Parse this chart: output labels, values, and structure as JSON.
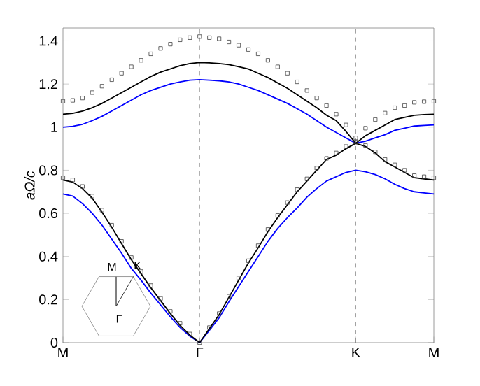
{
  "chart_data": {
    "type": "line",
    "ylabel": "aΩ/c",
    "categories": [
      "M",
      null,
      null,
      null,
      null,
      null,
      null,
      null,
      null,
      null,
      null,
      null,
      null,
      null,
      "Γ",
      null,
      null,
      null,
      null,
      null,
      null,
      null,
      null,
      null,
      null,
      null,
      null,
      null,
      null,
      null,
      "K",
      null,
      null,
      null,
      null,
      null,
      null,
      null,
      "M"
    ],
    "ylim": [
      0,
      1.46
    ],
    "yticks": [
      0,
      0.2,
      0.4,
      0.6,
      0.8,
      1,
      1.2,
      1.4
    ],
    "grid": false,
    "ref_lines": [
      {
        "axis": "x",
        "value": "Γ",
        "color": "#808080",
        "line_style": "dashed"
      },
      {
        "axis": "x",
        "value": "K",
        "color": "#808080",
        "line_style": "dashed"
      }
    ],
    "annotations": [
      "M",
      "K",
      {
        "text": "Γ"
      }
    ],
    "series": [
      {
        "color": "#0000ff",
        "line_style": "solid",
        "values": [
          0.69,
          0.68,
          0.645,
          0.6,
          0.545,
          0.48,
          0.415,
          0.345,
          0.29,
          0.23,
          0.175,
          0.12,
          0.07,
          0.03,
          0,
          0.057,
          0.115,
          0.19,
          0.26,
          0.33,
          0.4,
          0.47,
          0.53,
          0.58,
          0.625,
          0.675,
          0.715,
          0.75,
          0.77,
          0.79,
          0.8,
          0.793,
          0.78,
          0.76,
          0.735,
          0.715,
          0.7,
          0.695,
          0.69
        ]
      },
      {
        "color": "#0000ff",
        "line_style": "solid",
        "values": [
          1.0,
          1.004,
          1.013,
          1.03,
          1.05,
          1.075,
          1.1,
          1.125,
          1.15,
          1.17,
          1.185,
          1.2,
          1.21,
          1.218,
          1.22,
          1.218,
          1.215,
          1.21,
          1.2,
          1.185,
          1.17,
          1.15,
          1.13,
          1.11,
          1.085,
          1.06,
          1.03,
          1.0,
          0.975,
          0.95,
          0.925,
          0.935,
          0.95,
          0.965,
          0.985,
          0.995,
          1.005,
          1.008,
          1.01
        ]
      },
      {
        "color": "#000000",
        "line_style": "solid",
        "values": [
          0.755,
          0.745,
          0.715,
          0.67,
          0.605,
          0.535,
          0.46,
          0.385,
          0.32,
          0.255,
          0.195,
          0.135,
          0.08,
          0.035,
          0,
          0.065,
          0.13,
          0.21,
          0.29,
          0.37,
          0.44,
          0.515,
          0.58,
          0.64,
          0.7,
          0.75,
          0.8,
          0.85,
          0.87,
          0.9,
          0.925,
          0.91,
          0.88,
          0.84,
          0.815,
          0.79,
          0.765,
          0.76,
          0.755
        ]
      },
      {
        "color": "#000000",
        "line_style": "solid",
        "values": [
          1.06,
          1.064,
          1.074,
          1.09,
          1.11,
          1.135,
          1.16,
          1.185,
          1.21,
          1.235,
          1.255,
          1.27,
          1.285,
          1.295,
          1.3,
          1.298,
          1.295,
          1.29,
          1.28,
          1.27,
          1.25,
          1.23,
          1.205,
          1.18,
          1.15,
          1.12,
          1.09,
          1.055,
          1.03,
          0.98,
          0.925,
          0.96,
          0.985,
          1.01,
          1.035,
          1.045,
          1.055,
          1.058,
          1.06
        ]
      },
      {
        "type": "scatter",
        "marker": "square",
        "color": "#404040",
        "values": [
          0.765,
          0.755,
          0.725,
          0.68,
          0.615,
          0.545,
          0.47,
          0.395,
          0.33,
          0.265,
          0.205,
          0.145,
          0.09,
          0.04,
          0,
          0.07,
          0.135,
          0.215,
          0.3,
          0.38,
          0.45,
          0.525,
          0.59,
          0.65,
          0.71,
          0.76,
          0.81,
          0.855,
          0.88,
          0.91,
          0.93,
          0.915,
          0.885,
          0.85,
          0.825,
          0.8,
          0.775,
          0.77,
          0.765
        ]
      },
      {
        "type": "scatter",
        "marker": "square",
        "color": "#404040",
        "values": [
          1.12,
          1.124,
          1.135,
          1.16,
          1.19,
          1.22,
          1.25,
          1.28,
          1.31,
          1.34,
          1.365,
          1.385,
          1.405,
          1.415,
          1.42,
          1.415,
          1.41,
          1.395,
          1.38,
          1.36,
          1.34,
          1.31,
          1.28,
          1.25,
          1.21,
          1.17,
          1.135,
          1.1,
          1.06,
          1.01,
          0.95,
          0.995,
          1.035,
          1.065,
          1.09,
          1.1,
          1.115,
          1.118,
          1.12
        ]
      }
    ]
  }
}
